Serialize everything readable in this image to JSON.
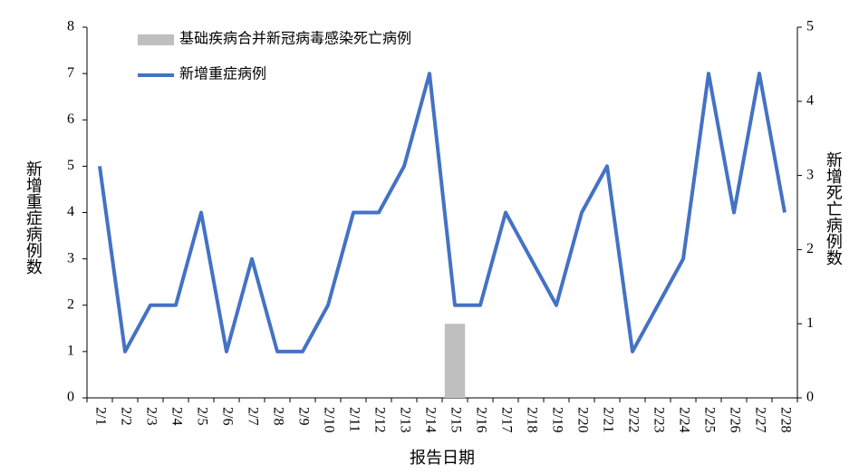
{
  "chart_data": {
    "type": "bar+line",
    "xlabel": "报告日期",
    "ylabel": "新增重症病例数",
    "y2label": "新增死亡病例数",
    "categories": [
      "2/1",
      "2/2",
      "2/3",
      "2/4",
      "2/5",
      "2/6",
      "2/7",
      "2/8",
      "2/9",
      "2/10",
      "2/11",
      "2/12",
      "2/13",
      "2/14",
      "2/15",
      "2/16",
      "2/17",
      "2/18",
      "2/19",
      "2/20",
      "2/21",
      "2/22",
      "2/23",
      "2/24",
      "2/25",
      "2/26",
      "2/27",
      "2/28"
    ],
    "series": [
      {
        "name": "基础疾病合并新冠病毒感染死亡病例",
        "type": "bar",
        "axis": "y2",
        "color": "#bfbfbf",
        "values": [
          0,
          0,
          0,
          0,
          0,
          0,
          0,
          0,
          0,
          0,
          0,
          0,
          0,
          0,
          1,
          0,
          0,
          0,
          0,
          0,
          0,
          0,
          0,
          0,
          0,
          0,
          0,
          0
        ]
      },
      {
        "name": "新增重症病例",
        "type": "line",
        "color": "#4472c4",
        "values": [
          5,
          1,
          2,
          2,
          4,
          1,
          3,
          1,
          1,
          2,
          4,
          4,
          5,
          7,
          2,
          2,
          4,
          3,
          2,
          4,
          5,
          1,
          2,
          3,
          7,
          4,
          7,
          4
        ]
      }
    ],
    "ylim": [
      0,
      8
    ],
    "yticks": [
      0,
      1,
      2,
      3,
      4,
      5,
      6,
      7,
      8
    ],
    "y2lim": [
      0,
      5
    ],
    "y2ticks": [
      0,
      1,
      2,
      3,
      4,
      5
    ],
    "legend": "upper left"
  }
}
